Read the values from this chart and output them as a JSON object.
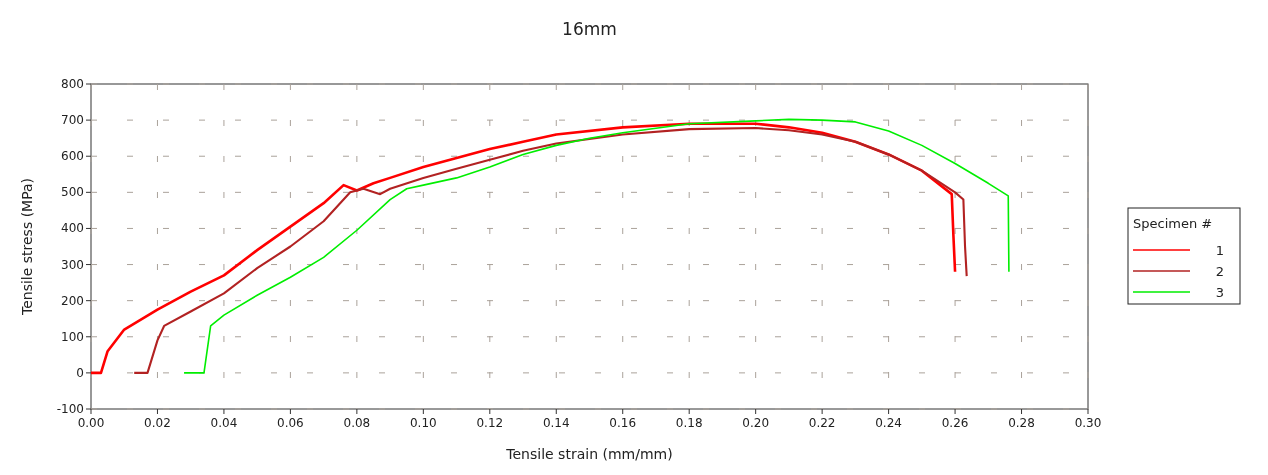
{
  "chart_data": {
    "type": "line",
    "title": "16mm",
    "xlabel": "Tensile strain (mm/mm)",
    "ylabel": "Tensile stress (MPa)",
    "legend_title": "Specimen #",
    "legend": "right",
    "grid": true,
    "line_style": "solid",
    "xlim": [
      0,
      0.3
    ],
    "ylim": [
      -100,
      800
    ],
    "xticks": [
      {
        "value": 0,
        "label": "0.00"
      },
      {
        "value": 0.02,
        "label": "0.02"
      },
      {
        "value": 0.04,
        "label": "0.04"
      },
      {
        "value": 0.06,
        "label": "0.06"
      },
      {
        "value": 0.08,
        "label": "0.08"
      },
      {
        "value": 0.1,
        "label": "0.10"
      },
      {
        "value": 0.12,
        "label": "0.12"
      },
      {
        "value": 0.14,
        "label": "0.14"
      },
      {
        "value": 0.16,
        "label": "0.16"
      },
      {
        "value": 0.18,
        "label": "0.18"
      },
      {
        "value": 0.2,
        "label": "0.20"
      },
      {
        "value": 0.22,
        "label": "0.22"
      },
      {
        "value": 0.24,
        "label": "0.24"
      },
      {
        "value": 0.26,
        "label": "0.26"
      },
      {
        "value": 0.28,
        "label": "0.28"
      },
      {
        "value": 0.3,
        "label": "0.30"
      }
    ],
    "yticks": [
      -100,
      0,
      100,
      200,
      300,
      400,
      500,
      600,
      700,
      800
    ],
    "series": [
      {
        "name": "1",
        "color": "#ff0000",
        "x": [
          0,
          0.003,
          0.005,
          0.01,
          0.02,
          0.03,
          0.04,
          0.05,
          0.06,
          0.07,
          0.076,
          0.08,
          0.085,
          0.09,
          0.1,
          0.11,
          0.12,
          0.13,
          0.14,
          0.16,
          0.18,
          0.2,
          0.21,
          0.22,
          0.23,
          0.24,
          0.25,
          0.259,
          0.2595,
          0.26
        ],
        "values": [
          0,
          0,
          60,
          120,
          175,
          225,
          270,
          340,
          405,
          470,
          520,
          505,
          525,
          540,
          570,
          595,
          620,
          640,
          660,
          680,
          690,
          690,
          680,
          665,
          640,
          605,
          560,
          495,
          380,
          280
        ]
      },
      {
        "name": "2",
        "color": "#b22222",
        "x": [
          0.013,
          0.017,
          0.02,
          0.022,
          0.03,
          0.04,
          0.05,
          0.06,
          0.07,
          0.078,
          0.082,
          0.087,
          0.09,
          0.1,
          0.11,
          0.12,
          0.13,
          0.14,
          0.16,
          0.18,
          0.2,
          0.21,
          0.22,
          0.23,
          0.24,
          0.25,
          0.26,
          0.2625,
          0.263,
          0.2635
        ],
        "values": [
          0,
          0,
          90,
          130,
          170,
          220,
          290,
          350,
          420,
          500,
          510,
          495,
          510,
          540,
          565,
          590,
          615,
          635,
          660,
          675,
          678,
          672,
          660,
          640,
          605,
          560,
          500,
          480,
          350,
          268
        ]
      },
      {
        "name": "3",
        "color": "#00ee00",
        "x": [
          0.028,
          0.034,
          0.036,
          0.04,
          0.05,
          0.06,
          0.07,
          0.08,
          0.09,
          0.095,
          0.1,
          0.11,
          0.12,
          0.13,
          0.14,
          0.15,
          0.16,
          0.18,
          0.2,
          0.21,
          0.22,
          0.23,
          0.24,
          0.25,
          0.26,
          0.27,
          0.276,
          0.2762
        ],
        "values": [
          0,
          0,
          130,
          160,
          215,
          265,
          320,
          395,
          480,
          510,
          520,
          540,
          570,
          605,
          630,
          650,
          665,
          690,
          698,
          702,
          700,
          695,
          670,
          630,
          580,
          525,
          490,
          280
        ]
      }
    ]
  }
}
